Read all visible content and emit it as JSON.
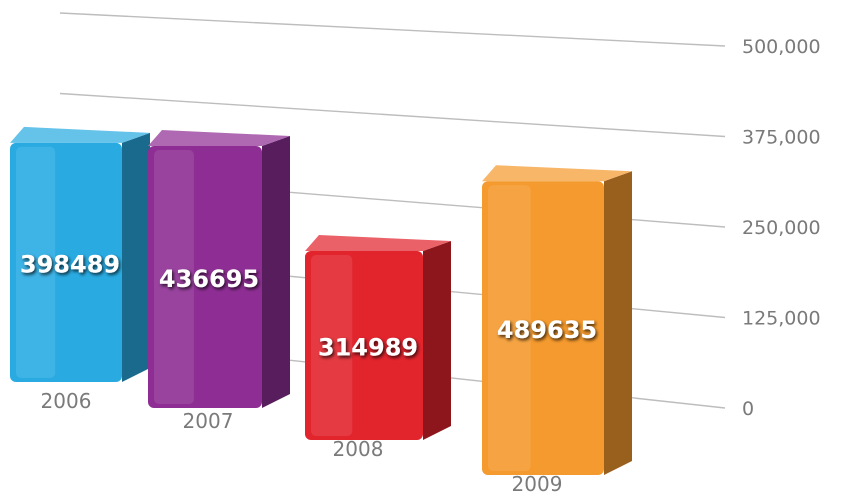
{
  "chart_data": {
    "type": "bar",
    "categories": [
      "2006",
      "2007",
      "2008",
      "2009"
    ],
    "values": [
      398489,
      436695,
      314989,
      489635
    ],
    "data_labels": [
      "398489",
      "436695",
      "314989",
      "489635"
    ],
    "ylim": [
      0,
      500000
    ],
    "yticks": [
      {
        "value": 0,
        "label": "0"
      },
      {
        "value": 125000,
        "label": "125,000"
      },
      {
        "value": 250000,
        "label": "250,000"
      },
      {
        "value": 375000,
        "label": "375,000"
      },
      {
        "value": 500000,
        "label": "500,000"
      }
    ],
    "colors": [
      "#29abe2",
      "#8e2e94",
      "#e2242d",
      "#f59a2e"
    ],
    "grid": true,
    "legend": "none",
    "style": "3d-perspective"
  }
}
